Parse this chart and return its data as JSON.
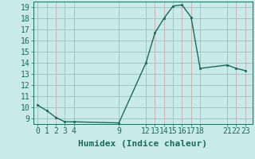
{
  "x": [
    0,
    1,
    2,
    3,
    4,
    9,
    12,
    13,
    14,
    15,
    16,
    17,
    18,
    21,
    22,
    23
  ],
  "y": [
    10.2,
    9.7,
    9.1,
    8.7,
    8.7,
    8.6,
    14.0,
    16.7,
    18.0,
    19.1,
    19.2,
    18.1,
    13.5,
    13.8,
    13.5,
    13.3
  ],
  "line_color": "#1a6b5a",
  "marker_color": "#1a6b5a",
  "bg_color": "#c8eae8",
  "grid_color": "#c8a0a0",
  "xlabel": "Humidex (Indice chaleur)",
  "ylabel_ticks": [
    9,
    10,
    11,
    12,
    13,
    14,
    15,
    16,
    17,
    18,
    19
  ],
  "xticks": [
    0,
    1,
    2,
    3,
    4,
    9,
    12,
    13,
    14,
    15,
    16,
    17,
    18,
    21,
    22,
    23
  ],
  "xlim": [
    -0.5,
    23.8
  ],
  "ylim": [
    8.5,
    19.5
  ],
  "tick_color": "#1a6b5a",
  "label_color": "#1a6b5a",
  "font_size": 7,
  "xlabel_fontsize": 8,
  "linewidth": 1.0,
  "markersize": 2.0
}
